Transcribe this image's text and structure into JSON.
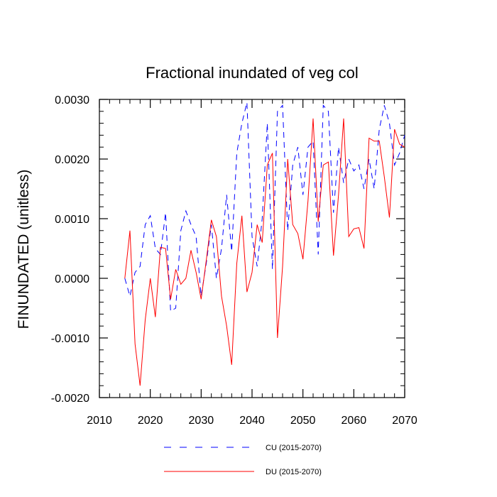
{
  "chart_data": {
    "type": "line",
    "title": "Fractional inundated of veg col",
    "xlabel": "",
    "ylabel": "FINUNDATED  (unitless)",
    "xlim": [
      2010,
      2070
    ],
    "ylim": [
      -0.002,
      0.003
    ],
    "x_ticks": [
      2010,
      2020,
      2030,
      2040,
      2050,
      2060,
      2070
    ],
    "y_ticks": [
      -0.002,
      -0.001,
      0.0,
      0.001,
      0.002,
      0.003
    ],
    "x_tick_labels": [
      "2010",
      "2020",
      "2030",
      "2040",
      "2050",
      "2060",
      "2070"
    ],
    "y_tick_labels": [
      "-0.0020",
      "-0.0010",
      "0.0000",
      "0.0010",
      "0.0020",
      "0.0030"
    ],
    "x": [
      2015,
      2016,
      2017,
      2018,
      2019,
      2020,
      2021,
      2022,
      2023,
      2024,
      2025,
      2026,
      2027,
      2028,
      2029,
      2030,
      2031,
      2032,
      2033,
      2034,
      2035,
      2036,
      2037,
      2038,
      2039,
      2040,
      2041,
      2042,
      2043,
      2044,
      2045,
      2046,
      2047,
      2048,
      2049,
      2050,
      2051,
      2052,
      2053,
      2054,
      2055,
      2056,
      2057,
      2058,
      2059,
      2060,
      2061,
      2062,
      2063,
      2064,
      2065,
      2066,
      2067,
      2068,
      2069,
      2070
    ],
    "series": [
      {
        "name": "CU (2015-2070)",
        "color": "#0000ff",
        "style": "dashed",
        "values": [
          0.0,
          -0.0003,
          0.0001,
          0.0002,
          0.0009,
          0.00105,
          0.0005,
          0.0004,
          0.0011,
          -0.00055,
          -0.0005,
          0.0008,
          0.00113,
          0.0009,
          0.0007,
          -0.0003,
          0.00025,
          0.0009,
          0.0,
          0.0005,
          0.0014,
          0.00045,
          0.0021,
          0.0026,
          0.00295,
          0.0007,
          0.0002,
          0.001,
          0.0026,
          0.00015,
          0.0028,
          0.0029,
          0.0008,
          0.0019,
          0.0022,
          0.0014,
          0.0022,
          0.0023,
          0.0004,
          0.0029,
          0.0028,
          0.0011,
          0.0022,
          0.0016,
          0.002,
          0.0018,
          0.0019,
          0.0015,
          0.002,
          0.0015,
          0.0025,
          0.0029,
          0.0026,
          0.0019,
          0.0021,
          0.0024
        ]
      },
      {
        "name": "DU (2015-2070)",
        "color": "#ff0000",
        "style": "solid",
        "values": [
          0.0,
          0.0008,
          -0.0011,
          -0.0018,
          -0.0007,
          0.0,
          -0.00065,
          0.00052,
          0.0005,
          -0.00035,
          0.00015,
          -0.0001,
          0.0,
          0.00047,
          0.0001,
          -0.00035,
          0.0003,
          0.00098,
          0.0007,
          -0.0003,
          -0.0008,
          -0.00145,
          0.00025,
          0.00105,
          -0.00023,
          0.0001,
          0.0009,
          0.0006,
          0.0019,
          0.0021,
          -0.001,
          0.0002,
          0.002,
          0.0009,
          0.00075,
          0.00032,
          0.0013,
          0.00268,
          0.00095,
          0.0019,
          0.00195,
          0.00038,
          0.0014,
          0.00268,
          0.0007,
          0.00083,
          0.00085,
          0.0005,
          0.00235,
          0.0023,
          0.0023,
          0.0017,
          0.00102,
          0.0025,
          0.00225,
          0.0022
        ]
      }
    ]
  }
}
